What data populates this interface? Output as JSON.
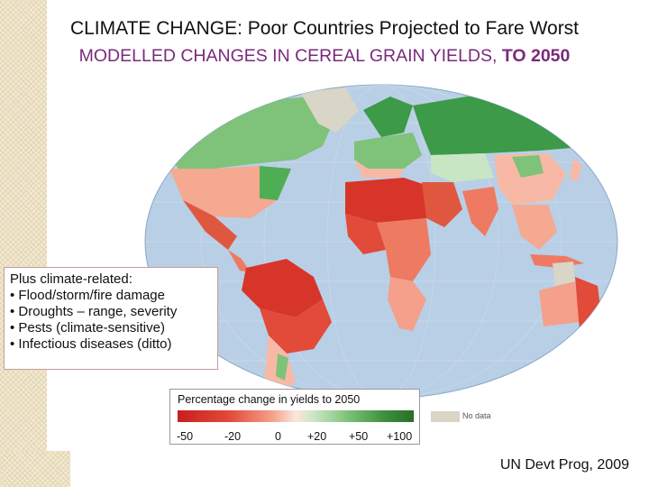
{
  "header": {
    "title": "CLIMATE CHANGE:  Poor Countries Projected to Fare Worst",
    "subtitle_main": "MODELLED CHANGES IN CEREAL GRAIN YIELDS, ",
    "subtitle_strong": "TO 2050"
  },
  "callout": {
    "heading": "Plus climate-related:",
    "items": [
      "Flood/storm/fire damage",
      "Droughts – range, severity",
      "Pests (climate-sensitive)",
      "Infectious diseases (ditto)"
    ]
  },
  "legend": {
    "title": "Percentage change in yields to 2050",
    "ticks": [
      "-50",
      "-20",
      "0",
      "+20",
      "+50",
      "+100"
    ],
    "no_data_label": "No data"
  },
  "source": "UN Devt Prog, 2009",
  "colors": {
    "ocean": "#b9cfe6",
    "severe_loss": "#d8352a",
    "loss": "#ee7a62",
    "mild_loss": "#f7b9a6",
    "gain": "#7fc27a",
    "strong_gain": "#3c9a48",
    "no_data": "#d9d5c7"
  }
}
